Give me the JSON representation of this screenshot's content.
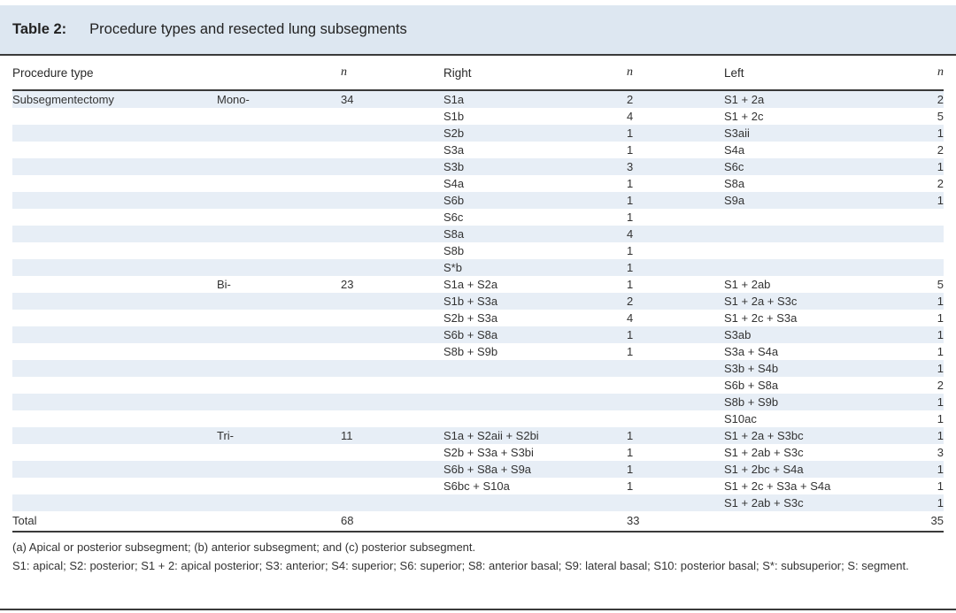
{
  "title": {
    "label": "Table 2:",
    "text": "Procedure types and resected lung subsegments"
  },
  "columns": {
    "procedure_type": "Procedure type",
    "subtype": "",
    "n1": "n",
    "right": "Right",
    "n2": "n",
    "left": "Left",
    "n3": "n"
  },
  "rows": [
    [
      "Subsegmentectomy",
      "Mono-",
      "34",
      "S1a",
      "2",
      "S1 + 2a",
      "2"
    ],
    [
      "",
      "",
      "",
      "S1b",
      "4",
      "S1 + 2c",
      "5"
    ],
    [
      "",
      "",
      "",
      "S2b",
      "1",
      "S3aii",
      "1"
    ],
    [
      "",
      "",
      "",
      "S3a",
      "1",
      "S4a",
      "2"
    ],
    [
      "",
      "",
      "",
      "S3b",
      "3",
      "S6c",
      "1"
    ],
    [
      "",
      "",
      "",
      "S4a",
      "1",
      "S8a",
      "2"
    ],
    [
      "",
      "",
      "",
      "S6b",
      "1",
      "S9a",
      "1"
    ],
    [
      "",
      "",
      "",
      "S6c",
      "1",
      "",
      ""
    ],
    [
      "",
      "",
      "",
      "S8a",
      "4",
      "",
      ""
    ],
    [
      "",
      "",
      "",
      "S8b",
      "1",
      "",
      ""
    ],
    [
      "",
      "",
      "",
      "S*b",
      "1",
      "",
      ""
    ],
    [
      "",
      "Bi-",
      "23",
      "S1a + S2a",
      "1",
      "S1 + 2ab",
      "5"
    ],
    [
      "",
      "",
      "",
      "S1b + S3a",
      "2",
      "S1 + 2a + S3c",
      "1"
    ],
    [
      "",
      "",
      "",
      "S2b + S3a",
      "4",
      "S1 + 2c + S3a",
      "1"
    ],
    [
      "",
      "",
      "",
      "S6b + S8a",
      "1",
      "S3ab",
      "1"
    ],
    [
      "",
      "",
      "",
      "S8b + S9b",
      "1",
      "S3a + S4a",
      "1"
    ],
    [
      "",
      "",
      "",
      "",
      "",
      "S3b + S4b",
      "1"
    ],
    [
      "",
      "",
      "",
      "",
      "",
      "S6b + S8a",
      "2"
    ],
    [
      "",
      "",
      "",
      "",
      "",
      "S8b + S9b",
      "1"
    ],
    [
      "",
      "",
      "",
      "",
      "",
      "S10ac",
      "1"
    ],
    [
      "",
      "Tri-",
      "11",
      "S1a + S2aii + S2bi",
      "1",
      "S1 + 2a + S3bc",
      "1"
    ],
    [
      "",
      "",
      "",
      "S2b + S3a + S3bi",
      "1",
      "S1 + 2ab + S3c",
      "3"
    ],
    [
      "",
      "",
      "",
      "S6b + S8a + S9a",
      "1",
      "S1 + 2bc + S4a",
      "1"
    ],
    [
      "",
      "",
      "",
      "S6bc + S10a",
      "1",
      "S1 + 2c + S3a + S4a",
      "1"
    ],
    [
      "",
      "",
      "",
      "",
      "",
      "S1 + 2ab + S3c",
      "1"
    ]
  ],
  "total": {
    "label": "Total",
    "n_total": "68",
    "n_right": "33",
    "n_left": "35"
  },
  "footnotes": [
    "(a) Apical or posterior subsegment; (b) anterior subsegment; and (c) posterior subsegment.",
    "S1: apical; S2: posterior; S1 + 2: apical posterior; S3: anterior; S4: superior; S6: superior; S8: anterior basal; S9: lateral basal; S10: posterior basal; S*: subsuperior; S: segment."
  ],
  "colors": {
    "caption_band": "#dde7f1",
    "row_stripe": "#e7eef6",
    "rule": "#3a3a3a"
  }
}
